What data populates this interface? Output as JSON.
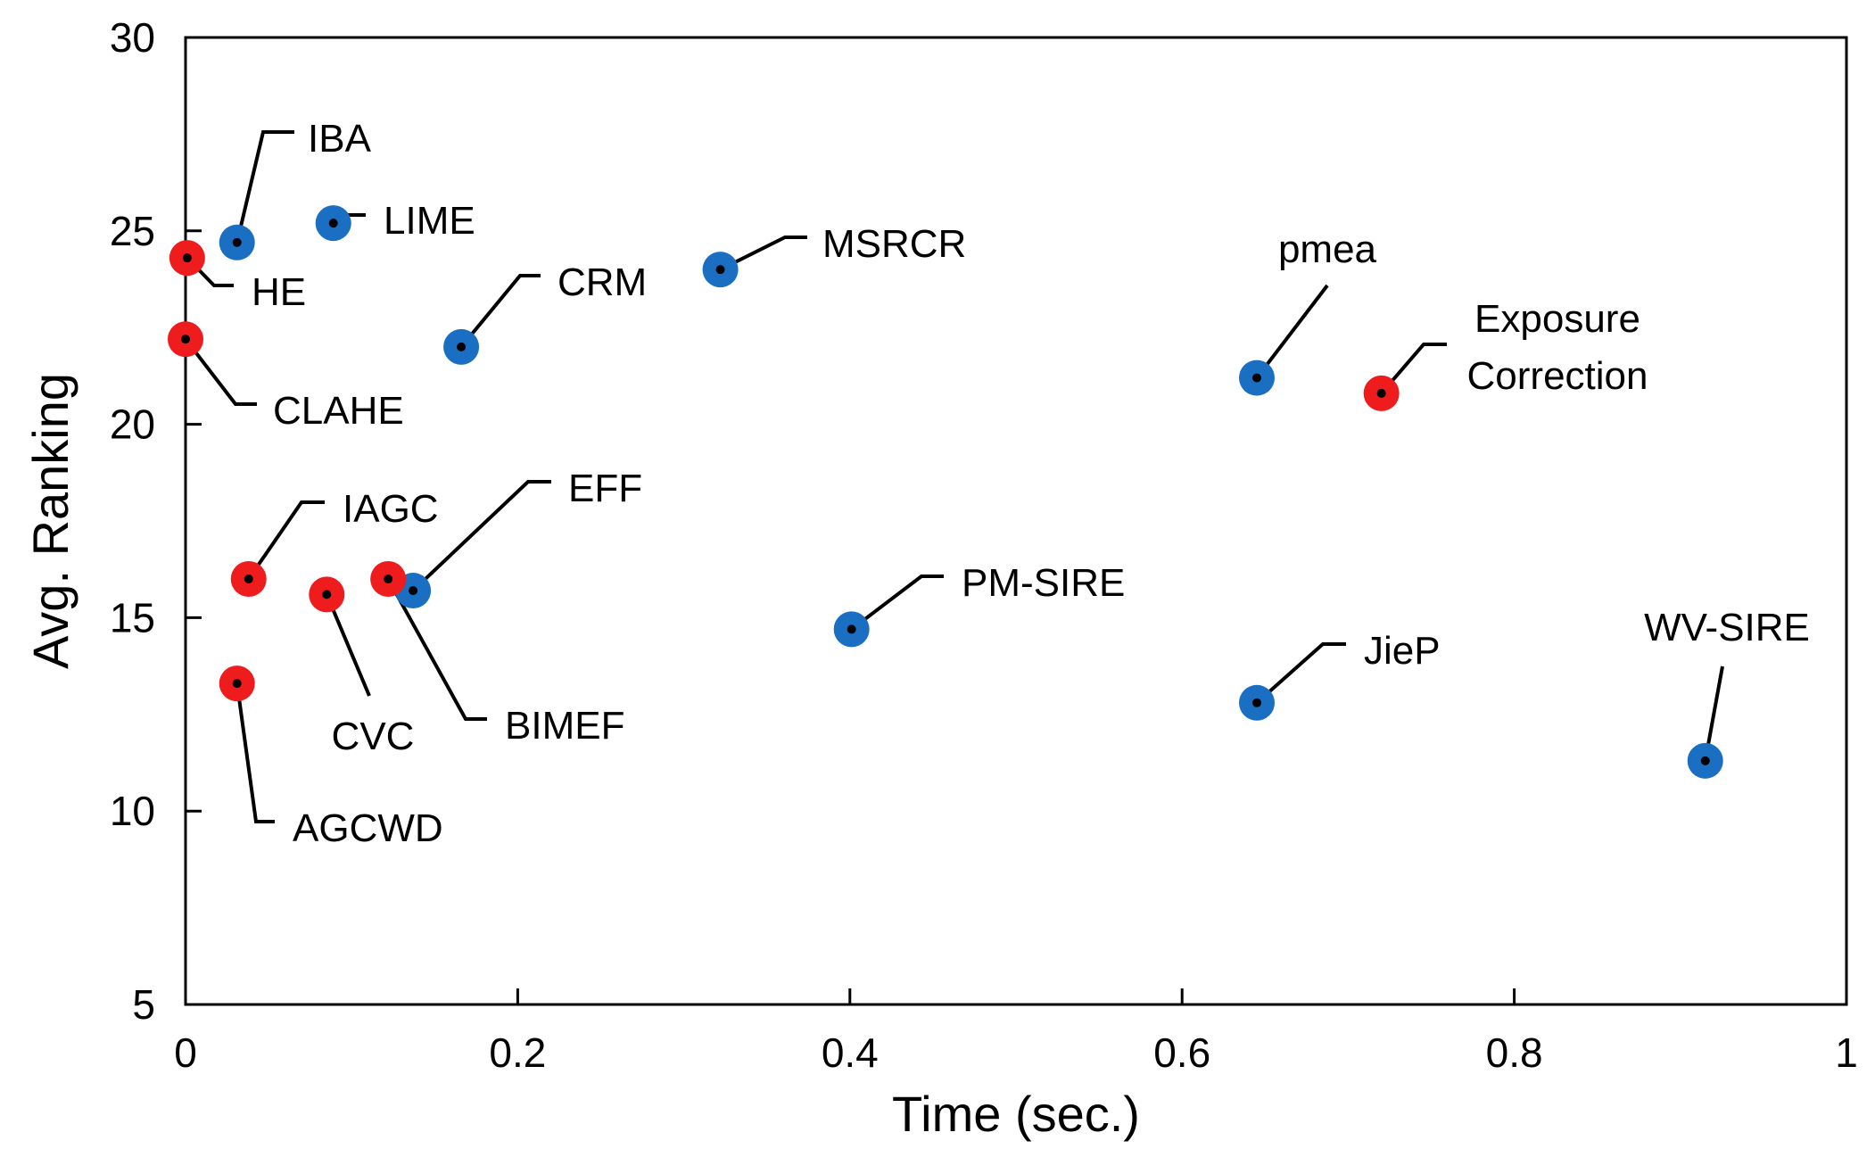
{
  "chart_data": {
    "type": "scatter",
    "title": "",
    "xlabel": "Time (sec.)",
    "ylabel": "Avg. Ranking",
    "xlim": [
      0,
      1
    ],
    "ylim": [
      5,
      30
    ],
    "xticks": [
      0,
      0.2,
      0.4,
      0.6,
      0.8,
      1
    ],
    "xtick_labels": [
      "0",
      "0.2",
      "0.4",
      "0.6",
      "0.8",
      "1"
    ],
    "yticks": [
      5,
      10,
      15,
      20,
      25,
      30
    ],
    "ytick_labels": [
      "5",
      "10",
      "15",
      "20",
      "25",
      "30"
    ],
    "grid": false,
    "colors": {
      "red": "#ee1c1c",
      "blue": "#1a6fc2",
      "dot": "#000000"
    },
    "points": [
      {
        "label": "IBA",
        "x": 0.031,
        "y": 24.7,
        "color": "blue"
      },
      {
        "label": "LIME",
        "x": 0.089,
        "y": 25.2,
        "color": "blue"
      },
      {
        "label": "HE",
        "x": 0.001,
        "y": 24.3,
        "color": "red"
      },
      {
        "label": "CLAHE",
        "x": 0.0,
        "y": 22.2,
        "color": "red"
      },
      {
        "label": "CRM",
        "x": 0.166,
        "y": 22.0,
        "color": "blue"
      },
      {
        "label": "MSRCR",
        "x": 0.322,
        "y": 24.0,
        "color": "blue"
      },
      {
        "label": "pmea",
        "x": 0.645,
        "y": 21.2,
        "color": "blue"
      },
      {
        "label": "Exposure Correction",
        "label_lines": [
          "Exposure",
          "Correction"
        ],
        "x": 0.72,
        "y": 20.8,
        "color": "red"
      },
      {
        "label": "IAGC",
        "x": 0.038,
        "y": 16.0,
        "color": "red"
      },
      {
        "label": "EFF",
        "x": 0.137,
        "y": 15.7,
        "color": "blue"
      },
      {
        "label": "BIMEF",
        "x": 0.122,
        "y": 16.0,
        "color": "red"
      },
      {
        "label": "CVC",
        "x": 0.085,
        "y": 15.6,
        "color": "red"
      },
      {
        "label": "AGCWD",
        "x": 0.031,
        "y": 13.3,
        "color": "red"
      },
      {
        "label": "PM-SIRE",
        "x": 0.401,
        "y": 14.7,
        "color": "blue"
      },
      {
        "label": "JieP",
        "x": 0.645,
        "y": 12.8,
        "color": "blue"
      },
      {
        "label": "WV-SIRE",
        "x": 0.915,
        "y": 11.3,
        "color": "blue"
      }
    ]
  }
}
